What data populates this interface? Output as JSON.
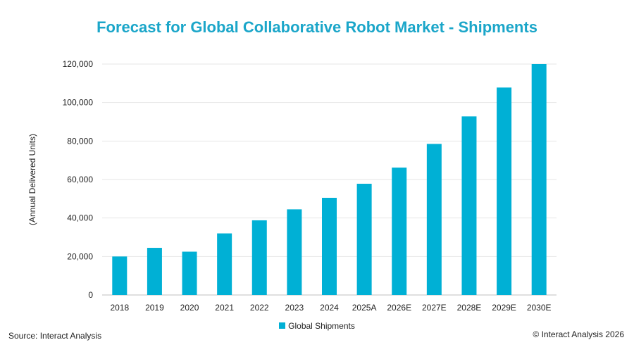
{
  "chart_data": {
    "type": "bar",
    "title": "Forecast for Global Collaborative Robot Market - Shipments",
    "ylabel": "(Annual Delivered Units)",
    "xlabel": "",
    "categories": [
      "2018",
      "2019",
      "2020",
      "2021",
      "2022",
      "2023",
      "2024",
      "2025A",
      "2026E",
      "2027E",
      "2028E",
      "2029E",
      "2030E"
    ],
    "series": [
      {
        "name": "Global Shipments",
        "color": "#00b0d5",
        "values": [
          20000,
          24500,
          22500,
          32000,
          38800,
          44500,
          50500,
          57800,
          66200,
          78500,
          92800,
          107800,
          120000
        ]
      }
    ],
    "ylim": [
      0,
      120000
    ],
    "yticks": [
      0,
      20000,
      40000,
      60000,
      80000,
      100000,
      120000
    ],
    "ytick_labels": [
      "0",
      "20,000",
      "40,000",
      "60,000",
      "80,000",
      "100,000",
      "120,000"
    ],
    "grid": true,
    "legend_position": "bottom"
  },
  "footer": {
    "source": "Source: Interact Analysis",
    "copyright": "© Interact Analysis 2026"
  }
}
